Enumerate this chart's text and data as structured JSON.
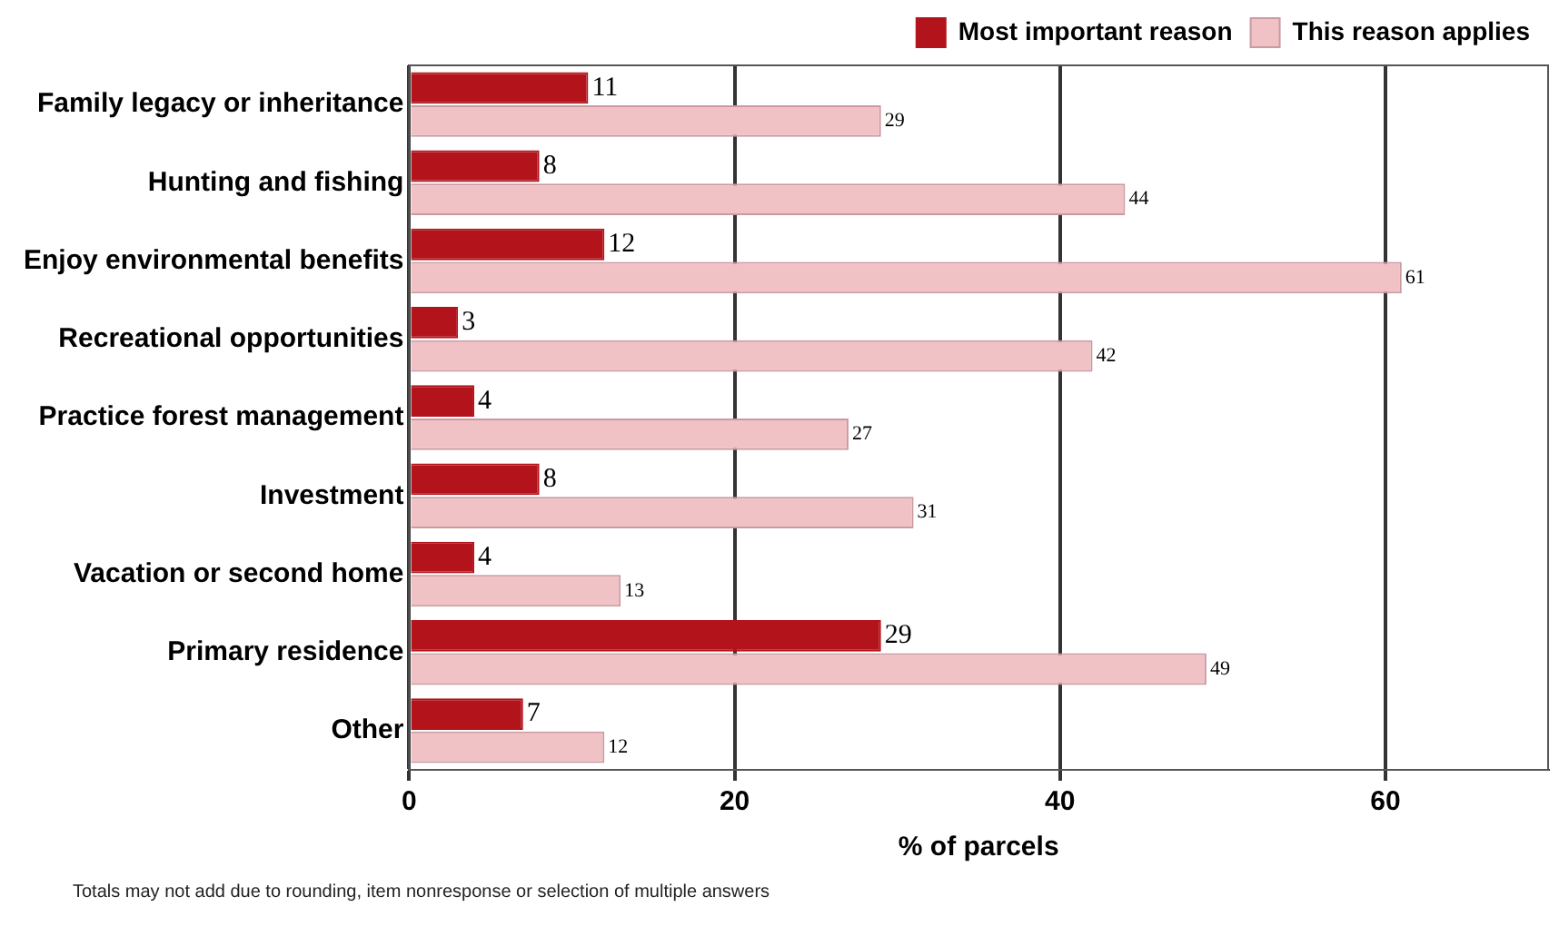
{
  "chart_data": {
    "type": "bar",
    "orientation": "horizontal",
    "xlabel": "% of parcels",
    "categories": [
      "Family legacy or inheritance",
      "Hunting and fishing",
      "Enjoy environmental benefits",
      "Recreational opportunities",
      "Practice forest management",
      "Investment",
      "Vacation or second home",
      "Primary residence",
      "Other"
    ],
    "series": [
      {
        "name": "Most important reason",
        "color": "#b3141c",
        "values": [
          11,
          8,
          12,
          3,
          4,
          8,
          4,
          29,
          7
        ]
      },
      {
        "name": "This reason applies",
        "color": "#f0c2c6",
        "values": [
          29,
          44,
          61,
          42,
          27,
          31,
          13,
          49,
          12
        ]
      }
    ],
    "xlim": [
      0,
      70
    ],
    "xticks": [
      0,
      20,
      40,
      60
    ],
    "grid": "x",
    "legend": "top",
    "data_labels": true,
    "annotations": [
      "Totals may not add due to rounding, item nonresponse or selection of multiple answers"
    ]
  }
}
